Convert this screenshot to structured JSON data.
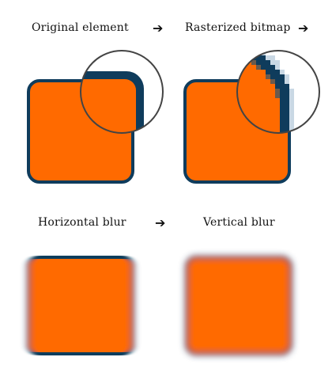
{
  "labels": {
    "original": "Original element",
    "rasterized": "Rasterized bitmap",
    "horizontal": "Horizontal blur",
    "vertical": "Vertical blur"
  },
  "arrows": {
    "a1": "➔",
    "a2": "➔",
    "a3": "➔"
  },
  "colors": {
    "fill": "#ff6a00",
    "border": "#0f3c5c",
    "magnifier": "#444444"
  }
}
